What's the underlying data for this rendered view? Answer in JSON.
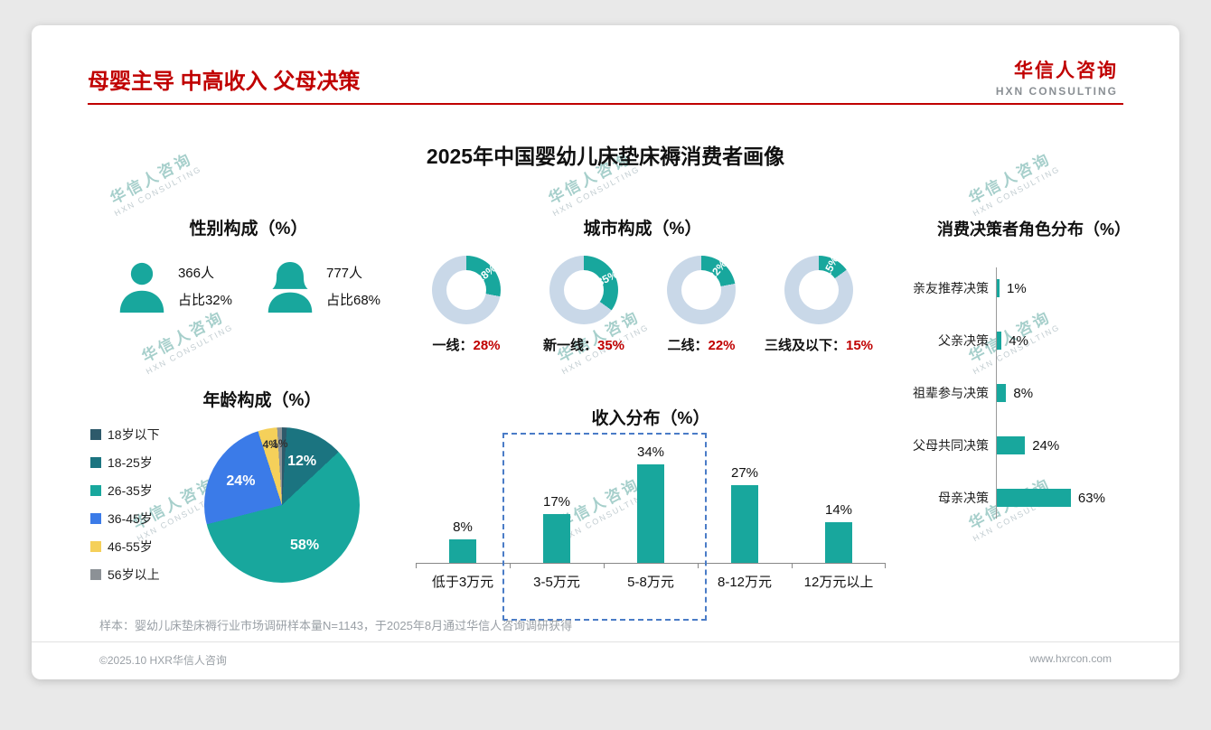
{
  "page": {
    "header_title": "母婴主导 中高收入 父母决策",
    "logo": {
      "cn": "华信人咨询",
      "en": "HXN CONSULTING"
    },
    "main_title": "2025年中国婴幼儿床垫床褥消费者画像",
    "watermark": {
      "cn": "华信人咨询",
      "en": "HXN CONSULTING"
    },
    "footnote": "样本：婴幼儿床垫床褥行业市场调研样本量N=1143，于2025年8月通过华信人咨询调研获得",
    "footer_left": "©2025.10 HXR华信人咨询",
    "footer_right": "www.hxrcon.com"
  },
  "colors": {
    "accent_teal": "#18A79D",
    "donut_rest": "#C9D8E8",
    "title_red": "#C00000",
    "highlight_blue": "#4A7CC7"
  },
  "chart_data": [
    {
      "id": "gender",
      "type": "pictogram",
      "title": "性别构成（%）",
      "icons": [
        "male-icon",
        "female-icon"
      ],
      "counts": [
        "366人",
        "777人"
      ],
      "shares": [
        "占比32%",
        "占比68%"
      ],
      "values": [
        32,
        68
      ]
    },
    {
      "id": "city",
      "type": "pie",
      "variant": "donut-group",
      "title": "城市构成（%）",
      "categories": [
        "一线",
        "新一线",
        "二线",
        "三线及以下"
      ],
      "values": [
        28,
        35,
        22,
        15
      ],
      "unit": "%",
      "caption_separator": "："
    },
    {
      "id": "age",
      "type": "pie",
      "title": "年龄构成（%）",
      "categories": [
        "18岁以下",
        "18-25岁",
        "26-35岁",
        "36-45岁",
        "46-55岁",
        "56岁以上"
      ],
      "values": [
        1,
        12,
        58,
        24,
        4,
        1
      ],
      "colors": [
        "#2E5A6B",
        "#1B7480",
        "#18A79D",
        "#3B7BE8",
        "#F5D05A",
        "#8C9196"
      ],
      "show_labels": [
        false,
        true,
        true,
        true,
        true,
        true
      ],
      "legend_position": "left"
    },
    {
      "id": "income",
      "type": "bar",
      "title": "收入分布（%）",
      "categories": [
        "低于3万元",
        "3-5万元",
        "5-8万元",
        "8-12万元",
        "12万元以上"
      ],
      "values": [
        8,
        17,
        34,
        27,
        14
      ],
      "unit": "%",
      "highlight_categories": [
        "3-5万元",
        "5-8万元"
      ]
    },
    {
      "id": "decision",
      "type": "bar",
      "orientation": "horizontal",
      "title": "消费决策者角色分布（%）",
      "categories": [
        "亲友推荐决策",
        "父亲决策",
        "祖辈参与决策",
        "父母共同决策",
        "母亲决策"
      ],
      "values": [
        1,
        4,
        8,
        24,
        63
      ],
      "unit": "%"
    }
  ]
}
